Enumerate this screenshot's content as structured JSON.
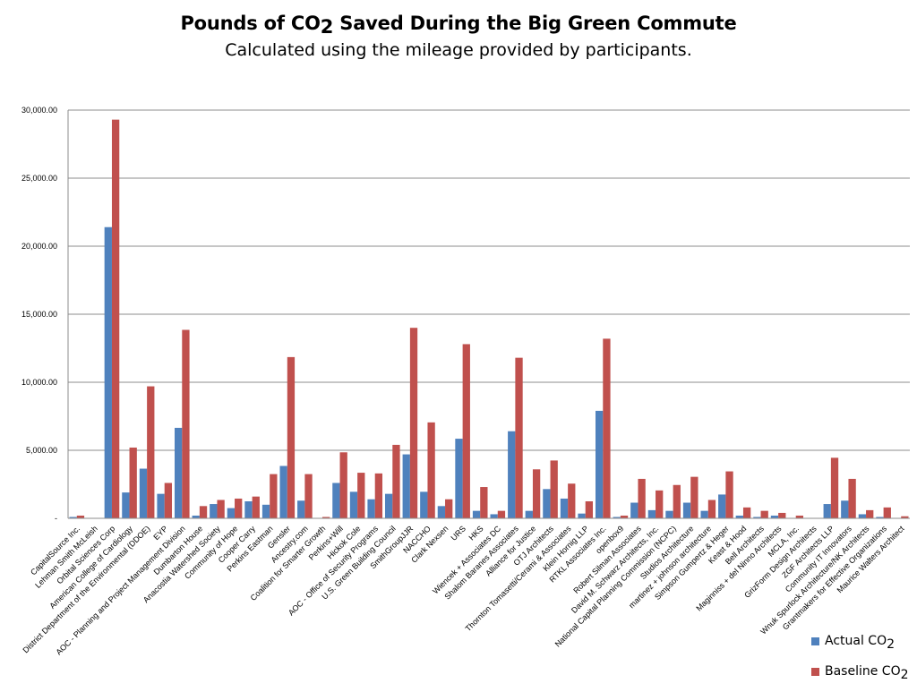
{
  "title_prefix": "Pounds of CO",
  "title_sub": "2",
  "title_suffix": " Saved During the Big Green Commute",
  "subtitle": "Calculated using the mileage provided by participants.",
  "colors": {
    "actual": "#4F81BD",
    "baseline": "#C0504D",
    "grid": "#8c8c8c"
  },
  "chart_data": {
    "type": "bar",
    "title": "Pounds of CO2 Saved During the Big Green Commute",
    "subtitle": "Calculated using the mileage provided by participants.",
    "xlabel": "",
    "ylabel": "",
    "ylim": [
      0,
      30000
    ],
    "yticks": [
      {
        "value": 0,
        "label": "-"
      },
      {
        "value": 5000,
        "label": "5,000.00"
      },
      {
        "value": 10000,
        "label": "10,000.00"
      },
      {
        "value": 15000,
        "label": "15,000.00"
      },
      {
        "value": 20000,
        "label": "20,000.00"
      },
      {
        "value": 25000,
        "label": "25,000.00"
      },
      {
        "value": 30000,
        "label": "30,000.00"
      }
    ],
    "legend_position": "bottom-right",
    "categories": [
      "CapitalSource Inc.",
      "Lehman Smith McLeish",
      "Orbital Sciences Corp",
      "American College of Cardiology",
      "District Department of the Environmental (DDOE)",
      "EYP",
      "AOC - Planning and Project Management Division",
      "Dumbarton House",
      "Anacostia Watershed Society",
      "Community of Hope",
      "Cooper Carry",
      "Perkins Eastman",
      "Gensler",
      "Ancestry.com",
      "Coalition for Smarter Growth",
      "Perkins+Will",
      "Hickok Cole",
      "AOC - Office of Security Programs",
      "U.S. Green Building Council",
      "SmithGroupJJR",
      "NACCHO",
      "Clark Nexsen",
      "URS",
      "HKS",
      "Wiencek + Associates DC",
      "Shalom Baranes Associates",
      "Alliance for Justice",
      "OTJ Architects",
      "Thornton Tomasetti/Cerami & Associates",
      "Klein Hornig LLP",
      "RTKL Associates Inc.",
      "openbox9",
      "Robert Silman Associates",
      "David M. Schwarz Architects, Inc.",
      "National Capital Planning Commission (NCPC)",
      "Studios Architecture",
      "martinez + johnson architecture",
      "Simpson Gumpertz & Heger",
      "Keast & Hood",
      "Bell Architects",
      "Maginniss + del Ninno Architects",
      "MCLA, Inc.",
      "GrizForm Design Architects",
      "ZGF Architects LLP",
      "Community IT Innovators",
      "Wnuk Spurlock Architecture/NK Architects",
      "Grantmakers for Effective Organizations",
      "Maurice Walters Architect"
    ],
    "series": [
      {
        "name": "Actual CO2",
        "color": "#4F81BD",
        "values": [
          100,
          0,
          21400,
          1900,
          3650,
          1800,
          6650,
          200,
          1050,
          750,
          1250,
          1000,
          3850,
          1300,
          0,
          2600,
          1950,
          1400,
          1800,
          4700,
          1950,
          900,
          5850,
          550,
          300,
          6400,
          550,
          2150,
          1450,
          350,
          7900,
          100,
          1150,
          600,
          550,
          1150,
          550,
          1750,
          200,
          100,
          200,
          0,
          0,
          1050,
          1300,
          300,
          100,
          0
        ]
      },
      {
        "name": "Baseline CO2",
        "color": "#C0504D",
        "values": [
          200,
          0,
          29300,
          5200,
          9700,
          2600,
          13850,
          900,
          1350,
          1450,
          1600,
          3250,
          11850,
          3250,
          100,
          4850,
          3350,
          3300,
          5400,
          14000,
          7050,
          1400,
          12800,
          2300,
          550,
          11800,
          3600,
          4250,
          2550,
          1250,
          13200,
          200,
          2900,
          2050,
          2450,
          3050,
          1350,
          3450,
          800,
          550,
          400,
          200,
          0,
          4450,
          2900,
          600,
          800,
          150
        ]
      }
    ]
  },
  "legend": {
    "actual": {
      "text": "Actual CO",
      "sub": "2"
    },
    "baseline": {
      "text": "Baseline CO",
      "sub": "2"
    }
  }
}
